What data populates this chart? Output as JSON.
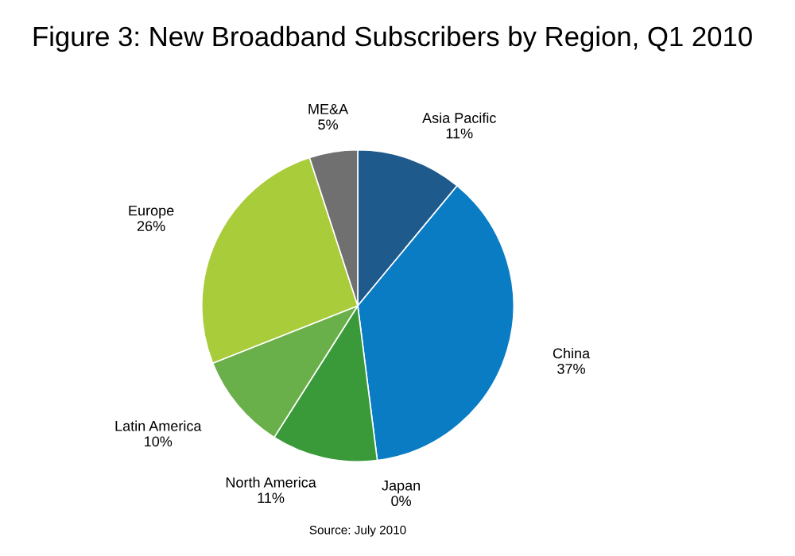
{
  "chart_data": {
    "type": "pie",
    "title": "Figure 3: New Broadband Subscribers by Region, Q1 2010",
    "categories": [
      "Asia Pacific",
      "China",
      "Japan",
      "North America",
      "Latin America",
      "Europe",
      "ME&A"
    ],
    "values": [
      11,
      37,
      0,
      11,
      10,
      26,
      5
    ],
    "value_labels": [
      "11%",
      "37%",
      "0%",
      "11%",
      "10%",
      "26%",
      "5%"
    ],
    "colors": [
      "#1f5a8c",
      "#0a7cc4",
      "#5ab0e0",
      "#3a9a3a",
      "#6ab04a",
      "#a8cc3a",
      "#707070"
    ],
    "annotations": [
      "Source: July 2010"
    ]
  }
}
